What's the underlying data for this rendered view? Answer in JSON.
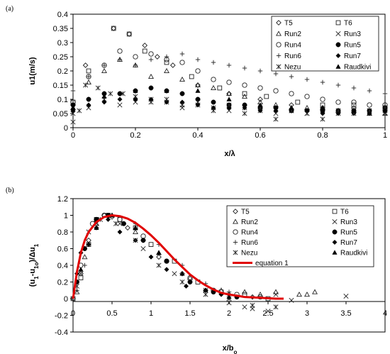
{
  "chart_data": [
    {
      "panel": "(a)",
      "type": "scatter",
      "xlabel": "x/λ",
      "ylabel": "u1(m/s)",
      "xlim": [
        0,
        1
      ],
      "ylim": [
        0,
        0.4
      ],
      "xticks": [
        "0",
        "0.2",
        "0.4",
        "0.6",
        "0.8",
        "1"
      ],
      "yticks": [
        "0",
        "0.05",
        "0.1",
        "0.15",
        "0.2",
        "0.25",
        "0.3",
        "0.35",
        "0.4"
      ],
      "grid": false,
      "legend_position": "top-right",
      "series": [
        {
          "name": "T5",
          "marker": "diamond-open",
          "x": [
            0,
            0.04,
            0.13,
            0.18,
            0.23,
            0.27,
            0.32,
            0.4,
            0.5,
            0.6,
            0.7,
            0.8,
            0.9,
            1
          ],
          "y": [
            0.08,
            0.22,
            0.35,
            0.33,
            0.29,
            0.25,
            0.22,
            0.15,
            0.12,
            0.1,
            0.08,
            0.07,
            0.07,
            0.06
          ]
        },
        {
          "name": "T6",
          "marker": "square-open",
          "x": [
            0,
            0.05,
            0.13,
            0.18,
            0.23,
            0.3,
            0.38,
            0.47,
            0.55,
            0.62,
            0.72,
            0.8,
            0.9,
            1
          ],
          "y": [
            0.09,
            0.2,
            0.35,
            0.33,
            0.27,
            0.23,
            0.18,
            0.14,
            0.12,
            0.11,
            0.09,
            0.08,
            0.08,
            0.07
          ]
        },
        {
          "name": "Run2",
          "marker": "triangle-open",
          "x": [
            0,
            0.05,
            0.1,
            0.15,
            0.2,
            0.25,
            0.3,
            0.35,
            0.4,
            0.45,
            0.5,
            0.55,
            0.6,
            0.65,
            0.7,
            0.75,
            0.8,
            0.85,
            0.9,
            0.95,
            1
          ],
          "y": [
            0.07,
            0.16,
            0.2,
            0.24,
            0.22,
            0.18,
            0.2,
            0.17,
            0.15,
            0.14,
            0.12,
            0.11,
            0.09,
            0.08,
            0.07,
            0.07,
            0.07,
            0.06,
            0.06,
            0.05,
            0.05
          ]
        },
        {
          "name": "Run3",
          "marker": "x",
          "x": [
            0,
            0.05,
            0.1,
            0.15,
            0.2,
            0.25,
            0.3,
            0.35,
            0.4,
            0.45,
            0.5,
            0.55,
            0.6,
            0.65,
            0.7,
            0.75,
            0.8,
            0.85,
            0.9,
            0.95,
            1
          ],
          "y": [
            0.05,
            0.07,
            0.1,
            0.08,
            0.09,
            0.1,
            0.09,
            0.07,
            0.08,
            0.07,
            0.06,
            0.07,
            0.06,
            0.05,
            0.06,
            0.05,
            0.06,
            0.05,
            0.06,
            0.05,
            0.05
          ]
        },
        {
          "name": "Run4",
          "marker": "circle-open",
          "x": [
            0,
            0.05,
            0.1,
            0.15,
            0.2,
            0.25,
            0.3,
            0.35,
            0.4,
            0.45,
            0.5,
            0.55,
            0.6,
            0.65,
            0.7,
            0.75,
            0.8,
            0.85,
            0.9,
            0.95,
            1
          ],
          "y": [
            0.09,
            0.18,
            0.22,
            0.27,
            0.25,
            0.26,
            0.24,
            0.23,
            0.2,
            0.17,
            0.16,
            0.15,
            0.14,
            0.13,
            0.12,
            0.11,
            0.1,
            0.09,
            0.09,
            0.08,
            0.08
          ]
        },
        {
          "name": "Run5",
          "marker": "circle-filled",
          "x": [
            0,
            0.05,
            0.1,
            0.15,
            0.2,
            0.25,
            0.3,
            0.35,
            0.4,
            0.45,
            0.5,
            0.55,
            0.6,
            0.65,
            0.7,
            0.75,
            0.8,
            0.85,
            0.9,
            0.95,
            1
          ],
          "y": [
            0.08,
            0.1,
            0.12,
            0.12,
            0.13,
            0.14,
            0.13,
            0.12,
            0.1,
            0.09,
            0.08,
            0.08,
            0.07,
            0.07,
            0.06,
            0.06,
            0.06,
            0.06,
            0.06,
            0.06,
            0.07
          ]
        },
        {
          "name": "Run6",
          "marker": "plus",
          "x": [
            0,
            0.05,
            0.1,
            0.15,
            0.2,
            0.25,
            0.3,
            0.35,
            0.4,
            0.45,
            0.5,
            0.55,
            0.6,
            0.65,
            0.7,
            0.75,
            0.8,
            0.85,
            0.9,
            0.95,
            1
          ],
          "y": [
            0.13,
            0.18,
            0.22,
            0.24,
            0.22,
            0.24,
            0.25,
            0.26,
            0.24,
            0.23,
            0.22,
            0.21,
            0.2,
            0.19,
            0.18,
            0.17,
            0.16,
            0.15,
            0.14,
            0.13,
            0.12
          ]
        },
        {
          "name": "Run7",
          "marker": "diamond-filled",
          "x": [
            0,
            0.05,
            0.1,
            0.15,
            0.2,
            0.25,
            0.3,
            0.35,
            0.4,
            0.45,
            0.5,
            0.55,
            0.6,
            0.65,
            0.7,
            0.75,
            0.8,
            0.85,
            0.9,
            0.95,
            1
          ],
          "y": [
            0.06,
            0.08,
            0.09,
            0.1,
            0.1,
            0.1,
            0.09,
            0.09,
            0.08,
            0.07,
            0.07,
            0.07,
            0.06,
            0.06,
            0.06,
            0.06,
            0.05,
            0.05,
            0.05,
            0.05,
            0.06
          ]
        },
        {
          "name": "Nezu",
          "marker": "asterisk",
          "x": [
            0,
            0.02,
            0.04,
            0.08,
            0.12,
            0.16,
            0.2,
            0.25,
            0.3,
            0.35,
            0.4,
            0.45,
            0.5,
            0.55,
            0.6,
            0.65,
            0.7,
            0.75,
            0.8,
            0.85,
            0.9,
            0.95,
            1
          ],
          "y": [
            0.02,
            0.06,
            0.15,
            0.14,
            0.12,
            0.12,
            0.11,
            0.09,
            0.1,
            0.08,
            0.09,
            0.06,
            0.08,
            0.05,
            0.07,
            0.03,
            0.06,
            0.05,
            0.03,
            0.06,
            0.05,
            0.06,
            0.07
          ]
        },
        {
          "name": "Raudkivi",
          "marker": "triangle-filled",
          "x": [
            0,
            0.1,
            0.2,
            0.3,
            0.4,
            0.5,
            0.6,
            0.7,
            0.8,
            0.9,
            1
          ],
          "y": [
            0.07,
            0.11,
            0.13,
            0.13,
            0.13,
            0.1,
            0.08,
            0.07,
            0.07,
            0.06,
            0.06
          ]
        }
      ]
    },
    {
      "panel": "(b)",
      "type": "scatter",
      "xlabel": "x/bo",
      "ylabel": "(u1-u1o)/Δu1",
      "xlim": [
        0,
        4
      ],
      "ylim": [
        -0.4,
        1.2
      ],
      "xticks": [
        "0",
        "0.5",
        "1",
        "1.5",
        "2",
        "2.5",
        "3",
        "3.5",
        "4"
      ],
      "yticks": [
        "-0.4",
        "-0.2",
        "0",
        "0.2",
        "0.4",
        "0.6",
        "0.8",
        "1",
        "1.2"
      ],
      "grid": false,
      "legend_position": "top-right",
      "series": [
        {
          "name": "T5",
          "marker": "diamond-open",
          "x": [
            0,
            0.1,
            0.2,
            0.3,
            0.4,
            0.5,
            0.7,
            0.9,
            1.1,
            1.4,
            1.7,
            2.0,
            2.3
          ],
          "y": [
            0,
            0.3,
            0.7,
            0.95,
            1.0,
            0.98,
            0.85,
            0.7,
            0.5,
            0.3,
            0.1,
            0.05,
            0.02
          ]
        },
        {
          "name": "T6",
          "marker": "square-open",
          "x": [
            0,
            0.1,
            0.2,
            0.3,
            0.45,
            0.6,
            0.8,
            1.0,
            1.3,
            1.6,
            1.9,
            2.2,
            2.5
          ],
          "y": [
            0,
            0.25,
            0.65,
            0.95,
            1.0,
            0.95,
            0.85,
            0.65,
            0.45,
            0.2,
            0.08,
            0.05,
            0.0
          ]
        },
        {
          "name": "Run2",
          "marker": "triangle-open",
          "x": [
            0.05,
            0.15,
            0.3,
            0.5,
            0.8,
            1.1,
            1.5,
            1.9,
            2.2,
            2.4,
            2.6,
            2.9,
            3.0,
            3.1
          ],
          "y": [
            0.08,
            0.5,
            0.9,
            1.0,
            0.8,
            0.55,
            0.25,
            0.1,
            0.08,
            0.05,
            0.08,
            0.05,
            0.05,
            0.08
          ]
        },
        {
          "name": "Run3",
          "marker": "x",
          "x": [
            0.1,
            0.3,
            0.6,
            0.9,
            1.3,
            1.7,
            2.0,
            2.2,
            2.3,
            2.5,
            2.6,
            2.8,
            3.5
          ],
          "y": [
            0.3,
            0.9,
            0.9,
            0.6,
            0.3,
            0.1,
            -0.05,
            -0.1,
            -0.12,
            -0.15,
            0.05,
            -0.02,
            0.03
          ]
        },
        {
          "name": "Run4",
          "marker": "circle-open",
          "x": [
            0.1,
            0.25,
            0.4,
            0.6,
            0.9,
            1.2,
            1.5,
            1.8,
            2.1,
            2.4
          ],
          "y": [
            0.4,
            0.9,
            1.0,
            0.95,
            0.75,
            0.45,
            0.25,
            0.1,
            0.05,
            0.02
          ]
        },
        {
          "name": "Run5",
          "marker": "circle-filled",
          "x": [
            0.05,
            0.15,
            0.3,
            0.45,
            0.65,
            0.9,
            1.2,
            1.5,
            1.8,
            2.1
          ],
          "y": [
            0.2,
            0.6,
            0.95,
            1.0,
            0.9,
            0.7,
            0.45,
            0.2,
            0.08,
            0.02
          ]
        },
        {
          "name": "Run6",
          "marker": "plus",
          "x": [
            0.05,
            0.15,
            0.3,
            0.5,
            0.8,
            1.1,
            1.4,
            1.7,
            2.0,
            2.3
          ],
          "y": [
            0.1,
            0.4,
            0.85,
            1.0,
            0.9,
            0.65,
            0.4,
            0.18,
            0.08,
            0.02
          ]
        },
        {
          "name": "Run7",
          "marker": "diamond-filled",
          "x": [
            0.05,
            0.1,
            0.2,
            0.3,
            0.45,
            0.6,
            0.8,
            1.0,
            1.2,
            1.45,
            1.7,
            1.9
          ],
          "y": [
            0.3,
            0.55,
            0.65,
            0.85,
            0.95,
            0.8,
            0.7,
            0.5,
            0.35,
            0.15,
            0.1,
            0.05
          ]
        },
        {
          "name": "Nezu",
          "marker": "asterisk",
          "x": [
            0.05,
            0.2,
            0.35,
            0.55,
            0.8,
            1.1,
            1.4,
            1.7,
            2.0,
            2.3,
            2.6
          ],
          "y": [
            0.15,
            0.8,
            0.95,
            0.9,
            0.7,
            0.4,
            0.2,
            0.05,
            0.0,
            -0.08,
            -0.1
          ]
        },
        {
          "name": "Raudkivi",
          "marker": "triangle-filled",
          "x": [
            0.1,
            0.3,
            0.5,
            0.8,
            1.1,
            1.4,
            1.7,
            2.0
          ],
          "y": [
            0.35,
            0.85,
            1.0,
            0.85,
            0.55,
            0.3,
            0.1,
            0.02
          ]
        },
        {
          "name": "equation 1",
          "marker": "line",
          "color": "#e00000",
          "x": [
            0,
            0.05,
            0.1,
            0.15,
            0.2,
            0.3,
            0.4,
            0.5,
            0.6,
            0.7,
            0.8,
            0.9,
            1.0,
            1.1,
            1.2,
            1.3,
            1.4,
            1.5,
            1.6,
            1.7,
            1.8,
            1.9,
            2.0,
            2.2,
            2.4,
            2.6,
            2.7
          ],
          "y": [
            0,
            0.32,
            0.55,
            0.7,
            0.8,
            0.92,
            0.98,
            1.0,
            0.99,
            0.96,
            0.91,
            0.84,
            0.76,
            0.67,
            0.57,
            0.47,
            0.38,
            0.29,
            0.22,
            0.16,
            0.11,
            0.07,
            0.05,
            0.02,
            0.01,
            0.0,
            0.0
          ]
        }
      ]
    }
  ]
}
